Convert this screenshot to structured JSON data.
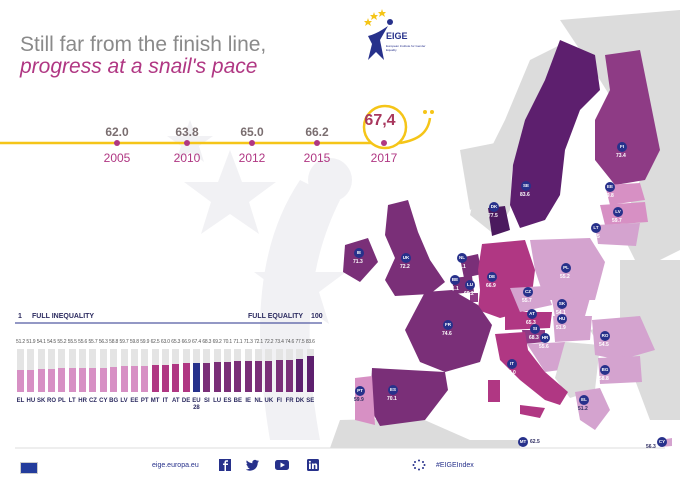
{
  "logo": {
    "name": "EIGE",
    "subtitle": "European Institute for Gender Equality"
  },
  "title": {
    "line1": "Still far from the finish line,",
    "line2": "progress at a snail's pace"
  },
  "timeline": [
    {
      "year": "2005",
      "value": "62.0"
    },
    {
      "year": "2010",
      "value": "63.8"
    },
    {
      "year": "2012",
      "value": "65.0"
    },
    {
      "year": "2015",
      "value": "66.2"
    },
    {
      "year": "2017",
      "value": "67,4"
    }
  ],
  "scale": {
    "min": "1",
    "min_label": "FULL INEQUALITY",
    "max_label": "FULL EQUALITY",
    "max": "100"
  },
  "chart_data": {
    "type": "bar",
    "categories": [
      "EL",
      "HU",
      "SK",
      "RO",
      "PL",
      "LT",
      "HR",
      "CZ",
      "CY",
      "BG",
      "LV",
      "EE",
      "PT",
      "MT",
      "IT",
      "AT",
      "DE",
      "EU 28",
      "SI",
      "LU",
      "ES",
      "BE",
      "IE",
      "NL",
      "UK",
      "FI",
      "FR",
      "DK",
      "SE"
    ],
    "values": [
      51.2,
      51.9,
      54.1,
      54.5,
      55.2,
      55.5,
      55.6,
      55.7,
      56.3,
      58.8,
      59.7,
      59.8,
      59.9,
      62.5,
      63.0,
      65.3,
      66.9,
      67.4,
      68.3,
      69.2,
      70.1,
      71.1,
      71.3,
      72.1,
      72.2,
      73.4,
      74.6,
      77.5,
      83.6
    ],
    "value_labels": [
      "51.2",
      "51.9",
      "54.1",
      "54.5",
      "55.2",
      "55.5",
      "55.6",
      "55.7",
      "56.3",
      "58.8",
      "59.7",
      "59.8",
      "59.9",
      "62.5",
      "63.0",
      "65.3",
      "66.9",
      "67.4",
      "68.3",
      "69.2",
      "70.1",
      "71.1",
      "71.3",
      "72.1",
      "72.2",
      "73.4",
      "74.6",
      "77.5",
      "83.6"
    ],
    "ylim": [
      0,
      100
    ]
  },
  "map_markers": [
    {
      "code": "FI",
      "value": "73.4"
    },
    {
      "code": "SE",
      "value": "83.6"
    },
    {
      "code": "EE",
      "value": "59.8"
    },
    {
      "code": "LV",
      "value": "59.7"
    },
    {
      "code": "LT",
      "value": "55.5"
    },
    {
      "code": "DK",
      "value": "77.5"
    },
    {
      "code": "IE",
      "value": "71.3"
    },
    {
      "code": "UK",
      "value": "72.2"
    },
    {
      "code": "NL",
      "value": "72.1"
    },
    {
      "code": "BE",
      "value": "71.1"
    },
    {
      "code": "LU",
      "value": "69.2"
    },
    {
      "code": "DE",
      "value": "66.9"
    },
    {
      "code": "PL",
      "value": "55.2"
    },
    {
      "code": "CZ",
      "value": "55.7"
    },
    {
      "code": "SK",
      "value": "54.1"
    },
    {
      "code": "AT",
      "value": "65.3"
    },
    {
      "code": "HU",
      "value": "51.9"
    },
    {
      "code": "SI",
      "value": "68.3"
    },
    {
      "code": "HR",
      "value": "55.6"
    },
    {
      "code": "RO",
      "value": "54.5"
    },
    {
      "code": "BG",
      "value": "58.8"
    },
    {
      "code": "FR",
      "value": "74.6"
    },
    {
      "code": "IT",
      "value": "63.0"
    },
    {
      "code": "ES",
      "value": "70.1"
    },
    {
      "code": "PT",
      "value": "59.9"
    },
    {
      "code": "EL",
      "value": "51.2"
    },
    {
      "code": "MT",
      "value": "62.5"
    },
    {
      "code": "CY",
      "value": "56.3"
    }
  ],
  "footer": {
    "url": "eige.europa.eu",
    "hashtag": "#EIGEIndex"
  },
  "colors": {
    "accent": "#b03783",
    "timeline": "#f5c518",
    "navy": "#27318b"
  }
}
